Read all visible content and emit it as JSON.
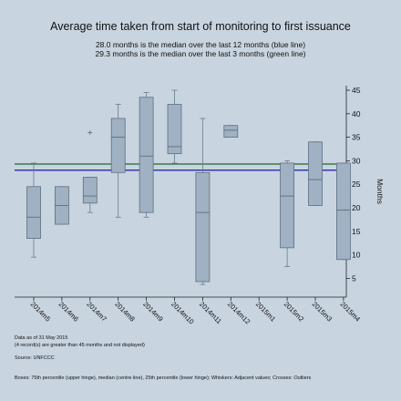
{
  "chart_data": {
    "type": "box",
    "title": "Average time taken from start of monitoring to first issuance",
    "subtitle_lines": [
      "28.0 months is the median over the last 12 months (blue line)",
      "29.3 months is the median over the last 3 months (green line)"
    ],
    "ylabel": "Months",
    "ylim": [
      2,
      46
    ],
    "yticks": [
      5,
      10,
      15,
      20,
      25,
      30,
      35,
      40,
      45
    ],
    "grid": false,
    "categories": [
      "2014m5",
      "2014m6",
      "2014m7",
      "2014m8",
      "2014m9",
      "2014m10",
      "2014m11",
      "2014m12",
      "2015m1",
      "2015m2",
      "2015m3",
      "2015m4"
    ],
    "boxes": [
      {
        "category": "2014m5",
        "whisker_low": 9.5,
        "q1": 13.5,
        "median": 18,
        "q3": 24.5,
        "whisker_high": 29.5,
        "outliers": []
      },
      {
        "category": "2014m6",
        "whisker_low": 16.5,
        "q1": 16.5,
        "median": 20.5,
        "q3": 24.5,
        "whisker_high": 24.5,
        "outliers": []
      },
      {
        "category": "2014m7",
        "whisker_low": 19,
        "q1": 21,
        "median": 22.5,
        "q3": 26.5,
        "whisker_high": 26.5,
        "outliers": [
          36
        ]
      },
      {
        "category": "2014m8",
        "whisker_low": 18,
        "q1": 27.5,
        "median": 35,
        "q3": 39,
        "whisker_high": 42,
        "outliers": []
      },
      {
        "category": "2014m9",
        "whisker_low": 18,
        "q1": 19,
        "median": 31,
        "q3": 43.5,
        "whisker_high": 44.5,
        "outliers": []
      },
      {
        "category": "2014m10",
        "whisker_low": 29.5,
        "q1": 31.5,
        "median": 33,
        "q3": 42,
        "whisker_high": 45,
        "outliers": []
      },
      {
        "category": "2014m11",
        "whisker_low": 3.7,
        "q1": 4.3,
        "median": 19,
        "q3": 27.5,
        "whisker_high": 39,
        "outliers": []
      },
      {
        "category": "2014m12",
        "whisker_low": 35,
        "q1": 35,
        "median": 36.5,
        "q3": 37.5,
        "whisker_high": 37.5,
        "outliers": []
      },
      {
        "category": "2015m1",
        "empty": true
      },
      {
        "category": "2015m2",
        "whisker_low": 7.5,
        "q1": 11.5,
        "median": 22.5,
        "q3": 29.5,
        "whisker_high": 30,
        "outliers": []
      },
      {
        "category": "2015m3",
        "whisker_low": 20.5,
        "q1": 20.5,
        "median": 26,
        "q3": 34,
        "whisker_high": 34,
        "outliers": []
      },
      {
        "category": "2015m4",
        "whisker_low": 9,
        "q1": 9,
        "median": 19.5,
        "q3": 29.5,
        "whisker_high": 29.5,
        "outliers": []
      }
    ],
    "reference_lines": [
      {
        "name": "blue line",
        "value": 28.0,
        "color": "#1a1aa6"
      },
      {
        "name": "green line",
        "value": 29.3,
        "color": "#1d6b2a"
      }
    ],
    "colors": {
      "box_fill": "#9fb1c2",
      "box_stroke": "#5f6f7f",
      "whisker": "#6b7b8b",
      "outlier": "#5f6f7f"
    }
  },
  "notes": [
    "Data as of 31 May 2015",
    "(4 record(s) are greater than 45 months and not displayed)",
    "Source: UNFCCC"
  ],
  "footer": "Boxes: 75th percentile (upper hinge), median (centre line), 25th percentile (lower hinge); Whiskers: Adjacent values; Crosses: Outliers"
}
